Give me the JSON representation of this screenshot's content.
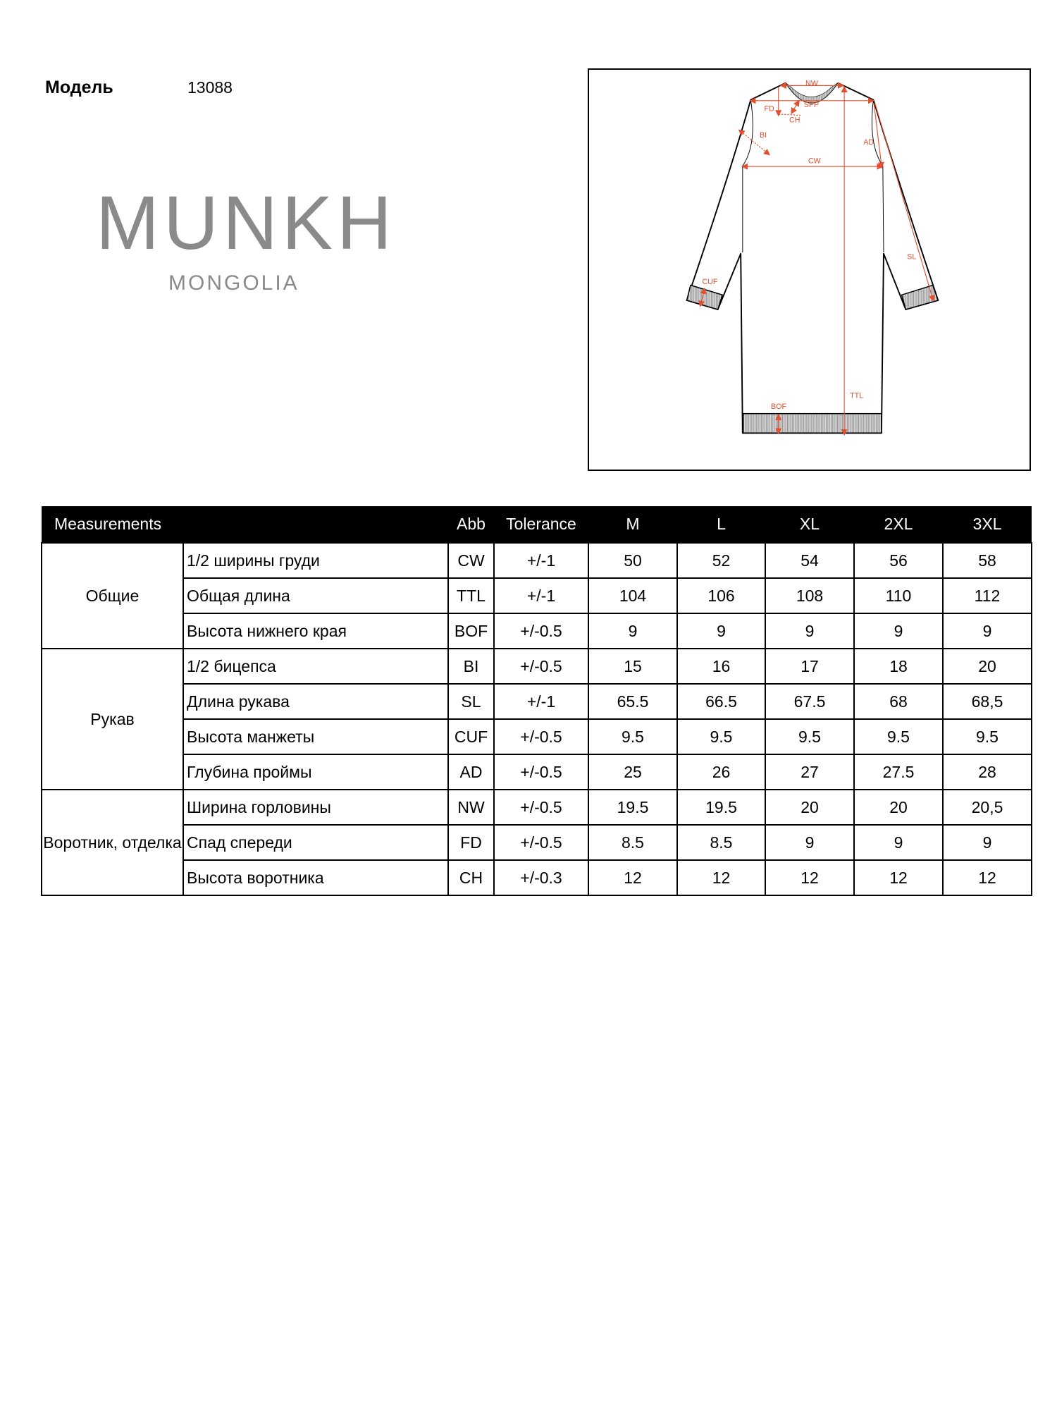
{
  "model": {
    "label": "Модель",
    "value": "13088"
  },
  "logo": {
    "main": "MUNKH",
    "sub": "MONGOLIA"
  },
  "diagram": {
    "labels": {
      "NW": "NW",
      "SPP": "SPP",
      "FD": "FD",
      "CH": "CH",
      "BI": "BI",
      "AD": "AD",
      "CW": "CW",
      "SL": "SL",
      "CUF": "CUF",
      "TTL": "TTL",
      "BOF": "BOF"
    },
    "measure_color": "#e2502f"
  },
  "table": {
    "headers": [
      "Measurements",
      "Abb",
      "Tolerance",
      "M",
      "L",
      "XL",
      "2XL",
      "3XL"
    ],
    "groups": [
      {
        "name": "Общие",
        "rows": [
          {
            "name": "1/2 ширины груди",
            "abb": "CW",
            "tol": "+/-1",
            "values": [
              "50",
              "52",
              "54",
              "56",
              "58"
            ]
          },
          {
            "name": "Общая длина",
            "abb": "TTL",
            "tol": "+/-1",
            "values": [
              "104",
              "106",
              "108",
              "110",
              "112"
            ]
          },
          {
            "name": "Высота нижнего края",
            "abb": "BOF",
            "tol": "+/-0.5",
            "values": [
              "9",
              "9",
              "9",
              "9",
              "9"
            ]
          }
        ]
      },
      {
        "name": "Рукав",
        "rows": [
          {
            "name": "1/2 бицепса",
            "abb": "BI",
            "tol": "+/-0.5",
            "values": [
              "15",
              "16",
              "17",
              "18",
              "20"
            ]
          },
          {
            "name": "Длина рукава",
            "abb": "SL",
            "tol": "+/-1",
            "values": [
              "65.5",
              "66.5",
              "67.5",
              "68",
              "68,5"
            ]
          },
          {
            "name": "Высота манжеты",
            "abb": "CUF",
            "tol": "+/-0.5",
            "values": [
              "9.5",
              "9.5",
              "9.5",
              "9.5",
              "9.5"
            ]
          },
          {
            "name": "Глубина проймы",
            "abb": "AD",
            "tol": "+/-0.5",
            "values": [
              "25",
              "26",
              "27",
              "27.5",
              "28"
            ]
          }
        ]
      },
      {
        "name": "Воротник, отделка",
        "rows": [
          {
            "name": "Ширина горловины",
            "abb": "NW",
            "tol": "+/-0.5",
            "values": [
              "19.5",
              "19.5",
              "20",
              "20",
              "20,5"
            ]
          },
          {
            "name": "Спад спереди",
            "abb": "FD",
            "tol": "+/-0.5",
            "values": [
              "8.5",
              "8.5",
              "9",
              "9",
              "9"
            ]
          },
          {
            "name": "Высота воротника",
            "abb": "CH",
            "tol": "+/-0.3",
            "values": [
              "12",
              "12",
              "12",
              "12",
              "12"
            ]
          }
        ]
      }
    ]
  }
}
